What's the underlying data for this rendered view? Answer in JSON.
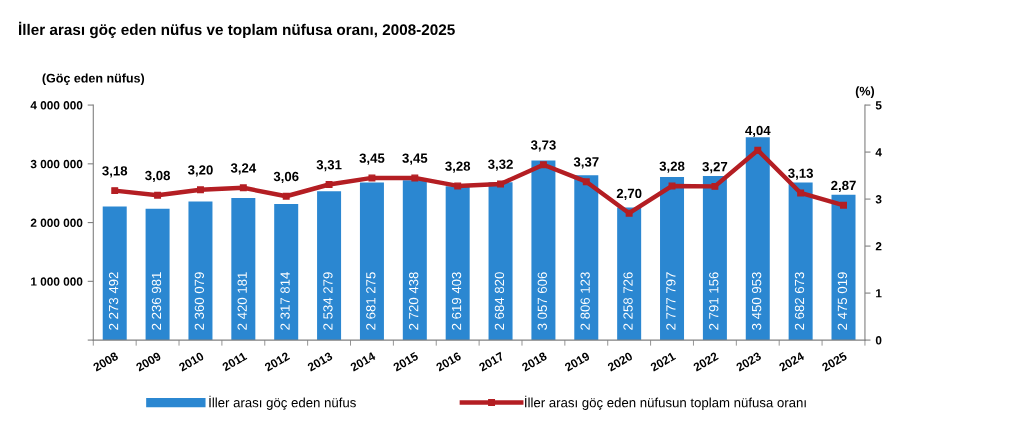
{
  "chart_data": {
    "type": "bar",
    "title": "İller arası göç eden nüfus ve toplam nüfusa oranı, 2008-2025",
    "ylabel": "(Göç eden nüfus)",
    "y2label": "(%)",
    "categories": [
      "2008",
      "2009",
      "2010",
      "2011",
      "2012",
      "2013",
      "2014",
      "2015",
      "2016",
      "2017",
      "2018",
      "2019",
      "2020",
      "2021",
      "2022",
      "2023",
      "2024",
      "2025"
    ],
    "series": [
      {
        "name": "İller arası göç eden nüfus",
        "color": "#2b87d1",
        "values": [
          2273492,
          2236981,
          2360079,
          2420181,
          2317814,
          2534279,
          2681275,
          2720438,
          2619403,
          2684820,
          3057606,
          2806123,
          2258726,
          2777797,
          2791156,
          3450953,
          2682673,
          2475019
        ],
        "value_labels": [
          "2 273 492",
          "2 236 981",
          "2 360 079",
          "2 420 181",
          "2 317 814",
          "2 534 279",
          "2 681 275",
          "2 720 438",
          "2 619 403",
          "2 684 820",
          "3 057 606",
          "2 806 123",
          "2 258 726",
          "2 777 797",
          "2 791 156",
          "3 450 953",
          "2 682 673",
          "2 475 019"
        ]
      },
      {
        "name": "İller arası göç eden nüfusun toplam nüfusa oranı",
        "type": "line",
        "axis": "y2",
        "color": "#b41e23",
        "marker": "square",
        "line_style": "solid",
        "values": [
          3.18,
          3.08,
          3.2,
          3.24,
          3.06,
          3.31,
          3.45,
          3.45,
          3.28,
          3.32,
          3.73,
          3.37,
          2.7,
          3.28,
          3.27,
          4.04,
          3.13,
          2.87
        ],
        "value_labels": [
          "3,18",
          "3,08",
          "3,20",
          "3,24",
          "3,06",
          "3,31",
          "3,45",
          "3,45",
          "3,28",
          "3,32",
          "3,73",
          "3,37",
          "2,70",
          "3,28",
          "3,27",
          "4,04",
          "3,13",
          "2,87"
        ]
      }
    ],
    "ylim": [
      0,
      4000000
    ],
    "yticks": [
      {
        "value": 0,
        "label": null
      },
      {
        "value": 1000000,
        "label": "1 000 000"
      },
      {
        "value": 2000000,
        "label": "2 000 000"
      },
      {
        "value": 3000000,
        "label": "3 000 000"
      },
      {
        "value": 4000000,
        "label": "4 000 000"
      }
    ],
    "y2lim": [
      0,
      5
    ],
    "y2ticks": [
      0,
      1,
      2,
      3,
      4,
      5
    ],
    "legend": "bottom"
  }
}
